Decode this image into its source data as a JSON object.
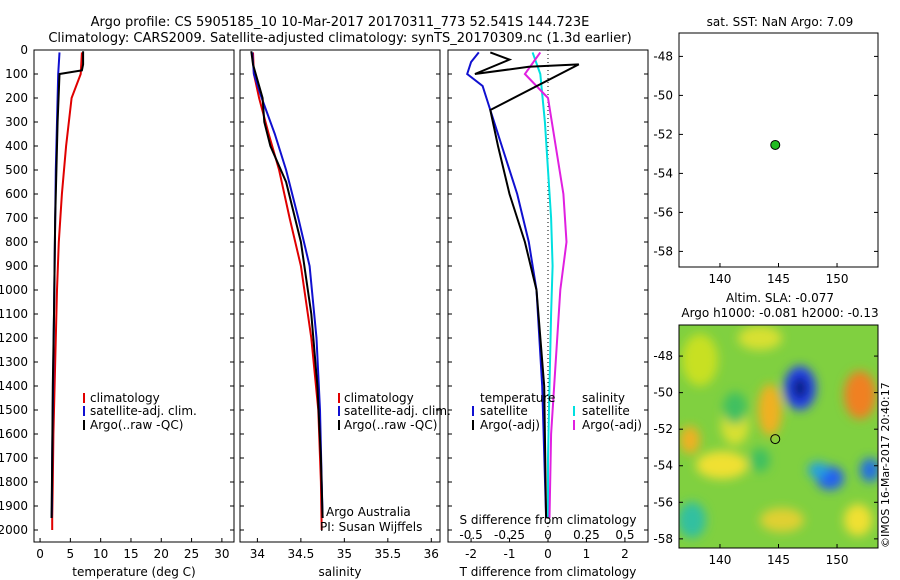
{
  "title_line1": "Argo profile: CS 5905185_10 10-Mar-2017 20170311_773 52.541S 144.723E",
  "title_line2": "Climatology: CARS2009. Satellite-adjusted climatology: synTS_20170309.nc (1.3d earlier)",
  "colors": {
    "climatology": "#e00000",
    "satellite": "#1010d0",
    "argo": "#000000",
    "sat_salinity": "#00e0e0",
    "argo_salinity_adj": "#e020e0",
    "float_dot": "#22bb22"
  },
  "panels": {
    "temperature": {
      "xlabel": "temperature (deg C)",
      "xticks": [
        "0",
        "5",
        "10",
        "15",
        "20",
        "25",
        "30"
      ],
      "legend": [
        "climatology",
        "satellite-adj. clim.",
        "Argo(..raw -QC)"
      ]
    },
    "salinity": {
      "xlabel": "salinity",
      "xticks": [
        "34",
        "34.5",
        "35",
        "35.5",
        "36"
      ],
      "legend": [
        "climatology",
        "satellite-adj. clim.",
        "Argo(..raw -QC)"
      ],
      "credit1": "Argo Australia",
      "credit2": "PI: Susan Wijffels"
    },
    "difference": {
      "xlabel": "T difference from climatology",
      "top_label": "S difference from climatology",
      "xticks_T": [
        "-2",
        "-1",
        "0",
        "1",
        "2"
      ],
      "xticks_S": [
        "-0.5",
        "-0.25",
        "0",
        "0.25",
        "0.5"
      ],
      "legend_T_header": "temperature",
      "legend_S_header": "salinity",
      "legend_T": [
        "satellite",
        "Argo(-adj)"
      ],
      "legend_S": [
        "satellite",
        "Argo(-adj)"
      ]
    },
    "sst_map": {
      "title": "sat. SST: NaN Argo: 7.09",
      "xticks": [
        "140",
        "145",
        "150"
      ],
      "yticks": [
        "-48",
        "-50",
        "-52",
        "-54",
        "-56",
        "-58"
      ]
    },
    "sla_map": {
      "title1": "Altim. SLA: -0.077",
      "title2": "Argo h1000: -0.081 h2000: -0.13",
      "xticks": [
        "140",
        "145",
        "150"
      ],
      "yticks": [
        "-48",
        "-50",
        "-52",
        "-54",
        "-56",
        "-58"
      ],
      "stamp": "IMOS 16-Mar-2017 20:40:17"
    }
  },
  "y_axis": {
    "ticks": [
      "0",
      "100",
      "200",
      "300",
      "400",
      "500",
      "600",
      "700",
      "800",
      "900",
      "1000",
      "1100",
      "1200",
      "1300",
      "1400",
      "1500",
      "1600",
      "1700",
      "1800",
      "1900",
      "2000"
    ]
  },
  "chart_data": [
    {
      "type": "line",
      "name": "temperature",
      "xlim": [
        -1,
        32
      ],
      "ylim": [
        2050,
        0
      ],
      "series": [
        {
          "name": "climatology",
          "x": [
            6.9,
            6.7,
            5.2,
            4.3,
            3.6,
            3.1,
            2.8,
            2.6,
            2.4,
            2.2,
            2.1,
            2.0,
            2.0
          ],
          "y": [
            10,
            100,
            200,
            400,
            600,
            800,
            1000,
            1200,
            1400,
            1600,
            1800,
            1950,
            2000
          ]
        },
        {
          "name": "satellite-adj. clim.",
          "x": [
            3.2,
            3.0,
            2.8,
            2.6,
            2.5,
            2.4,
            2.3,
            2.2,
            2.1,
            2.0,
            1.95,
            1.9
          ],
          "y": [
            10,
            100,
            300,
            500,
            700,
            900,
            1100,
            1300,
            1500,
            1700,
            1900,
            1950
          ]
        },
        {
          "name": "Argo(..raw -QC)",
          "x": [
            7.1,
            7.1,
            6.9,
            3.2,
            2.9,
            2.7,
            2.5,
            2.4,
            2.3,
            2.1,
            2.0,
            1.9
          ],
          "y": [
            5,
            60,
            85,
            100,
            300,
            500,
            700,
            900,
            1100,
            1400,
            1700,
            1950
          ]
        }
      ]
    },
    {
      "type": "line",
      "name": "salinity",
      "xlim": [
        33.8,
        36.1
      ],
      "ylim": [
        2050,
        0
      ],
      "series": [
        {
          "name": "climatology",
          "x": [
            33.95,
            33.96,
            34.02,
            34.13,
            34.25,
            34.37,
            34.5,
            34.62,
            34.7,
            34.73,
            34.74
          ],
          "y": [
            10,
            100,
            200,
            350,
            500,
            700,
            900,
            1200,
            1500,
            1800,
            2000
          ]
        },
        {
          "name": "satellite-adj. clim.",
          "x": [
            33.94,
            33.96,
            34.05,
            34.2,
            34.33,
            34.47,
            34.6,
            34.68,
            34.72,
            34.74,
            34.75
          ],
          "y": [
            10,
            100,
            200,
            350,
            500,
            700,
            900,
            1200,
            1500,
            1800,
            1950
          ]
        },
        {
          "name": "Argo(..raw -QC)",
          "x": [
            33.93,
            33.95,
            34.06,
            34.08,
            34.15,
            34.33,
            34.5,
            34.62,
            34.69,
            34.73,
            34.75
          ],
          "y": [
            5,
            60,
            200,
            300,
            400,
            550,
            800,
            1100,
            1400,
            1700,
            1950
          ]
        }
      ]
    },
    {
      "type": "line",
      "name": "difference",
      "xlim": [
        -2.6,
        2.6
      ],
      "ylim": [
        2050,
        0
      ],
      "series": [
        {
          "name": "satellite T",
          "x": [
            -1.8,
            -2.0,
            -2.1,
            -1.7,
            -1.5,
            -1.2,
            -0.8,
            -0.5,
            -0.3,
            -0.15,
            -0.05
          ],
          "y": [
            10,
            50,
            100,
            150,
            250,
            400,
            600,
            800,
            1000,
            1400,
            1950
          ]
        },
        {
          "name": "Argo(-adj) T",
          "x": [
            -1.5,
            -1.0,
            -1.9,
            -0.5,
            0.8,
            -1.5,
            -1.3,
            -1.0,
            -0.6,
            -0.3,
            -0.1,
            -0.05
          ],
          "y": [
            10,
            40,
            100,
            70,
            60,
            250,
            400,
            600,
            800,
            1000,
            1400,
            1950
          ]
        },
        {
          "name": "satellite S",
          "x": [
            -0.1,
            -0.05,
            -0.02,
            0.0,
            0.02,
            0.03,
            0.02,
            0.01,
            0.0,
            0.0
          ],
          "y": [
            10,
            100,
            300,
            500,
            700,
            900,
            1100,
            1400,
            1700,
            1950
          ]
        },
        {
          "name": "Argo(-adj) S",
          "x": [
            -0.05,
            -0.15,
            0.0,
            0.05,
            0.1,
            0.12,
            0.08,
            0.05,
            0.02,
            0.01
          ],
          "y": [
            10,
            100,
            200,
            400,
            600,
            800,
            1000,
            1300,
            1600,
            1950
          ]
        }
      ]
    },
    {
      "type": "scatter",
      "name": "sst_map",
      "x": [
        144.723
      ],
      "y": [
        -52.541
      ],
      "xlim": [
        136.5,
        153.5
      ],
      "ylim": [
        -58.8,
        -46.8
      ]
    },
    {
      "type": "heatmap",
      "name": "sla_map",
      "x": [
        144.723
      ],
      "y": [
        -52.541
      ],
      "xlim": [
        136.5,
        153.5
      ],
      "ylim": [
        -58.5,
        -46.3
      ]
    }
  ]
}
